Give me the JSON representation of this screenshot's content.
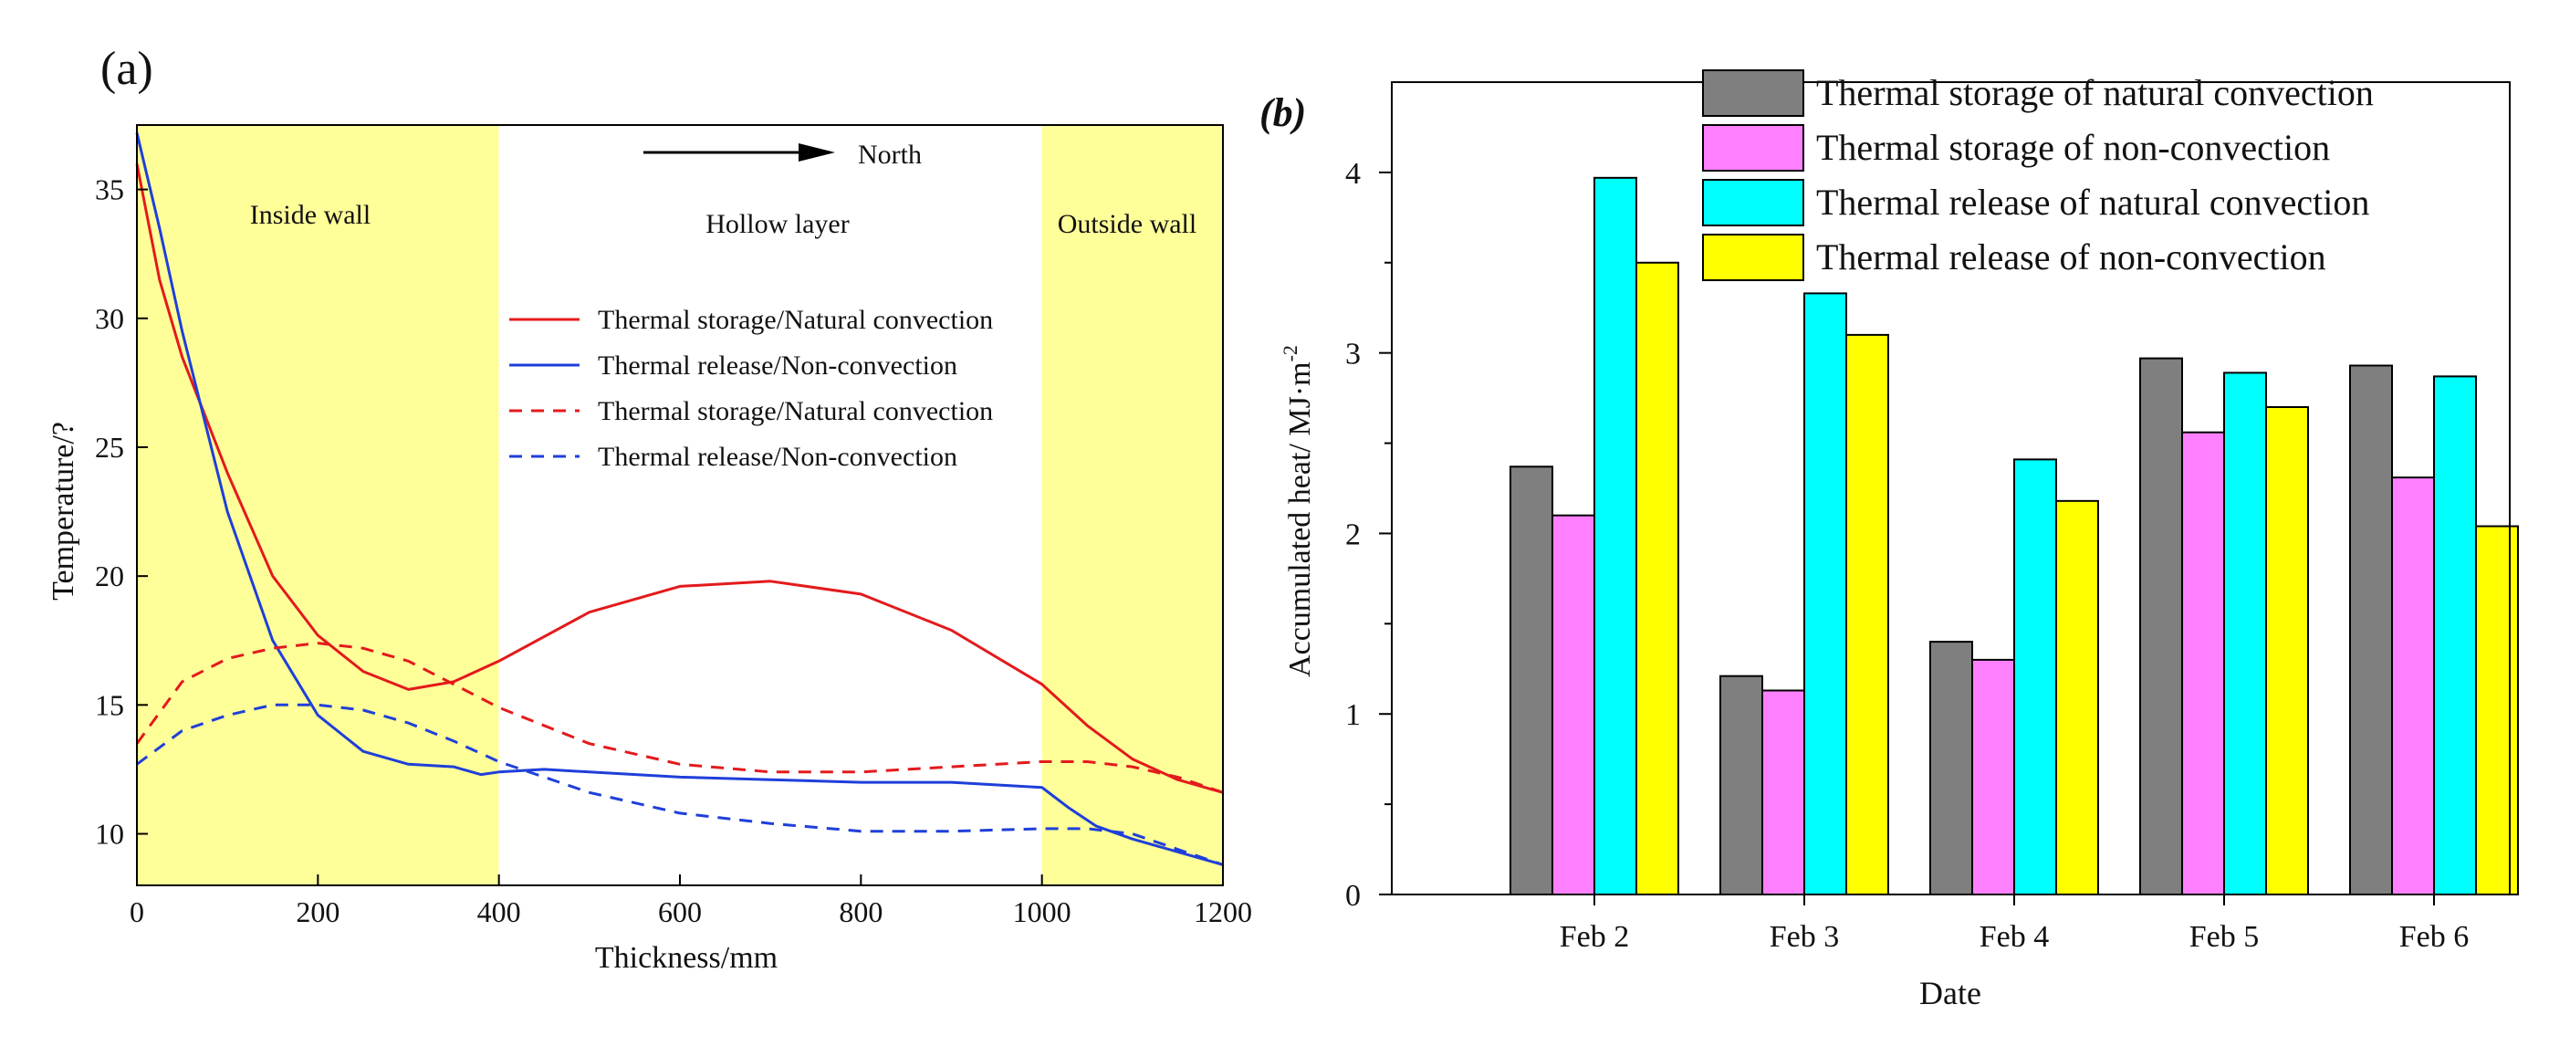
{
  "chart_data": [
    {
      "type": "line",
      "panel_label": "(a)",
      "xlabel": "Thickness/mm",
      "ylabel": "Temperature/?",
      "xlim": [
        0,
        1200
      ],
      "ylim": [
        8,
        37.5
      ],
      "x_ticks": [
        0,
        200,
        400,
        600,
        800,
        1000,
        1200
      ],
      "y_ticks": [
        10,
        15,
        20,
        25,
        30,
        35
      ],
      "regions": [
        {
          "label": "Inside wall",
          "from": 0,
          "to": 400,
          "color": "#ffff99"
        },
        {
          "label": "Hollow layer",
          "from": 400,
          "to": 1000,
          "color": "#ffffff"
        },
        {
          "label": "Outside wall",
          "from": 1000,
          "to": 1200,
          "color": "#ffff99"
        }
      ],
      "annotation": "North",
      "series": [
        {
          "name": "Thermal storage/Natural convection",
          "color": "#e31a1c",
          "dash": false,
          "x": [
            0,
            25,
            50,
            100,
            150,
            200,
            250,
            300,
            350,
            400,
            500,
            600,
            700,
            800,
            900,
            1000,
            1050,
            1100,
            1150,
            1200
          ],
          "y": [
            36.0,
            31.5,
            28.5,
            24.0,
            20.0,
            17.7,
            16.3,
            15.6,
            15.9,
            16.7,
            18.6,
            19.6,
            19.8,
            19.3,
            17.9,
            15.8,
            14.2,
            12.9,
            12.1,
            11.6
          ]
        },
        {
          "name": "Thermal release/Non-convection",
          "color": "#1f3fd9",
          "dash": false,
          "x": [
            0,
            25,
            50,
            100,
            150,
            200,
            250,
            300,
            350,
            380,
            400,
            450,
            500,
            600,
            700,
            800,
            900,
            1000,
            1030,
            1060,
            1100,
            1150,
            1200
          ],
          "y": [
            37.2,
            33.5,
            29.5,
            22.5,
            17.5,
            14.6,
            13.2,
            12.7,
            12.6,
            12.3,
            12.4,
            12.5,
            12.4,
            12.2,
            12.1,
            12.0,
            12.0,
            11.8,
            11.0,
            10.3,
            9.8,
            9.3,
            8.8
          ]
        },
        {
          "name": "Thermal storage/Natural convection",
          "color": "#e31a1c",
          "dash": true,
          "x": [
            0,
            50,
            100,
            150,
            200,
            250,
            300,
            350,
            400,
            500,
            600,
            700,
            800,
            900,
            1000,
            1050,
            1100,
            1150,
            1200
          ],
          "y": [
            13.5,
            15.9,
            16.8,
            17.2,
            17.4,
            17.2,
            16.7,
            15.8,
            14.9,
            13.5,
            12.7,
            12.4,
            12.4,
            12.6,
            12.8,
            12.8,
            12.6,
            12.2,
            11.6
          ]
        },
        {
          "name": "Thermal release/Non-convection",
          "color": "#1f3fd9",
          "dash": true,
          "x": [
            0,
            50,
            100,
            150,
            200,
            250,
            300,
            350,
            400,
            500,
            600,
            700,
            800,
            900,
            1000,
            1050,
            1100,
            1150,
            1200
          ],
          "y": [
            12.7,
            14.0,
            14.6,
            15.0,
            15.0,
            14.8,
            14.3,
            13.6,
            12.8,
            11.6,
            10.8,
            10.4,
            10.1,
            10.1,
            10.2,
            10.2,
            10.0,
            9.4,
            8.8
          ]
        }
      ]
    },
    {
      "type": "bar",
      "panel_label": "(b)",
      "xlabel": "Date",
      "ylabel": "Accumulated heat/ MJ·m",
      "ylabel_superscript": "-2",
      "categories": [
        "Feb 2",
        "Feb 3",
        "Feb 4",
        "Feb 5",
        "Feb 6"
      ],
      "ylim": [
        0,
        4.5
      ],
      "y_ticks": [
        0,
        1,
        2,
        3,
        4
      ],
      "series": [
        {
          "name": "Thermal storage of natural convection",
          "color": "#7f7f7f",
          "values": [
            2.37,
            1.21,
            1.4,
            2.97,
            2.93
          ]
        },
        {
          "name": "Thermal storage of non-convection",
          "color": "#ff80ff",
          "values": [
            2.1,
            1.13,
            1.3,
            2.56,
            2.31
          ]
        },
        {
          "name": "Thermal release of natural convection",
          "color": "#00ffff",
          "values": [
            3.97,
            3.33,
            2.41,
            2.89,
            2.87
          ]
        },
        {
          "name": "Thermal release of non-convection",
          "color": "#ffff00",
          "values": [
            3.5,
            3.1,
            2.18,
            2.7,
            2.04
          ]
        }
      ]
    }
  ]
}
